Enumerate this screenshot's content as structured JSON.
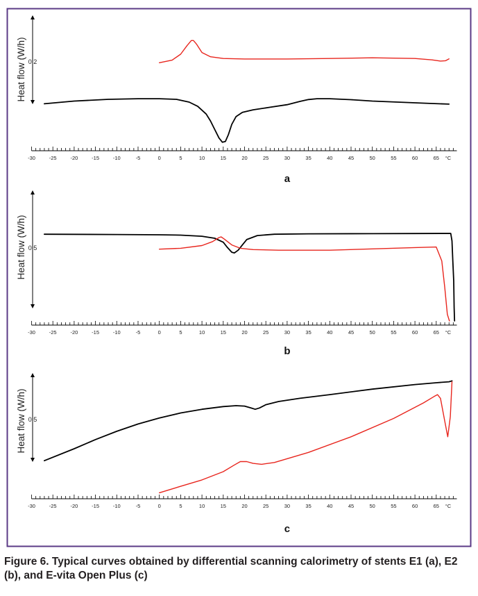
{
  "figure": {
    "border_color": "#5b3a86",
    "caption": "Figure 6. Typical curves obtained by differential scanning calorimetry of stents E1 (a), E2 (b), and E-vita Open Plus (c)"
  },
  "colors": {
    "black_curve": "#000000",
    "red_curve": "#e8251d"
  },
  "chart_data": [
    {
      "type": "line",
      "panel_label": "a",
      "ylabel": "Heat flow (W/h)",
      "scale_bar_value": "0.2",
      "x_unit": "°C",
      "xlim": [
        -30,
        70
      ],
      "x_tick_labels": [
        "-30",
        "-25",
        "-20",
        "-15",
        "-10",
        "-5",
        "0",
        "5",
        "10",
        "15",
        "20",
        "25",
        "30",
        "35",
        "40",
        "45",
        "50",
        "55",
        "60",
        "65"
      ],
      "grid": false,
      "y_offset_range": [
        -0.25,
        0.55
      ],
      "series": [
        {
          "color": "black",
          "points": [
            [
              -27,
              0.0
            ],
            [
              -20,
              0.016
            ],
            [
              -12,
              0.026
            ],
            [
              -5,
              0.03
            ],
            [
              0,
              0.03
            ],
            [
              4,
              0.026
            ],
            [
              7,
              0.01
            ],
            [
              9,
              -0.015
            ],
            [
              11,
              -0.06
            ],
            [
              12,
              -0.1
            ],
            [
              13,
              -0.15
            ],
            [
              14,
              -0.2
            ],
            [
              14.8,
              -0.225
            ],
            [
              15.5,
              -0.22
            ],
            [
              16.2,
              -0.18
            ],
            [
              17,
              -0.12
            ],
            [
              18,
              -0.075
            ],
            [
              19.5,
              -0.05
            ],
            [
              22,
              -0.035
            ],
            [
              26,
              -0.02
            ],
            [
              30,
              -0.005
            ],
            [
              33,
              0.014
            ],
            [
              35,
              0.025
            ],
            [
              37,
              0.03
            ],
            [
              40,
              0.03
            ],
            [
              45,
              0.024
            ],
            [
              50,
              0.016
            ],
            [
              56,
              0.01
            ],
            [
              62,
              0.004
            ],
            [
              68,
              -0.002
            ]
          ]
        },
        {
          "color": "red",
          "points": [
            [
              0,
              0.24
            ],
            [
              3,
              0.255
            ],
            [
              5,
              0.29
            ],
            [
              6.5,
              0.34
            ],
            [
              7.5,
              0.37
            ],
            [
              8,
              0.37
            ],
            [
              8.7,
              0.35
            ],
            [
              10,
              0.3
            ],
            [
              12,
              0.275
            ],
            [
              15,
              0.265
            ],
            [
              20,
              0.262
            ],
            [
              30,
              0.262
            ],
            [
              40,
              0.265
            ],
            [
              50,
              0.269
            ],
            [
              60,
              0.265
            ],
            [
              64,
              0.257
            ],
            [
              66,
              0.25
            ],
            [
              67.2,
              0.252
            ],
            [
              68,
              0.263
            ]
          ]
        }
      ]
    },
    {
      "type": "line",
      "panel_label": "b",
      "ylabel": "Heat flow (W/h)",
      "scale_bar_value": "0.5",
      "x_unit": "°C",
      "xlim": [
        -30,
        70
      ],
      "x_tick_labels": [
        "-30",
        "-25",
        "-20",
        "-15",
        "-10",
        "-5",
        "0",
        "5",
        "10",
        "15",
        "20",
        "25",
        "30",
        "35",
        "40",
        "45",
        "50",
        "55",
        "60",
        "65"
      ],
      "grid": false,
      "y_offset_range": [
        -0.55,
        0.45
      ],
      "series": [
        {
          "color": "black",
          "points": [
            [
              -27,
              0.1
            ],
            [
              -10,
              0.098
            ],
            [
              0,
              0.096
            ],
            [
              5,
              0.093
            ],
            [
              10,
              0.085
            ],
            [
              13,
              0.07
            ],
            [
              15,
              0.04
            ],
            [
              16,
              0.0
            ],
            [
              17,
              -0.035
            ],
            [
              17.6,
              -0.04
            ],
            [
              18.5,
              -0.02
            ],
            [
              19.5,
              0.02
            ],
            [
              20.5,
              0.06
            ],
            [
              23,
              0.09
            ],
            [
              27,
              0.1
            ],
            [
              35,
              0.103
            ],
            [
              50,
              0.104
            ],
            [
              60,
              0.105
            ],
            [
              68.4,
              0.106
            ],
            [
              68.7,
              0.05
            ],
            [
              68.9,
              -0.1
            ],
            [
              69.1,
              -0.25
            ],
            [
              69.2,
              -0.45
            ],
            [
              69.3,
              -0.55
            ]
          ]
        },
        {
          "color": "red",
          "points": [
            [
              0,
              -0.012
            ],
            [
              5,
              -0.005
            ],
            [
              10,
              0.015
            ],
            [
              12.5,
              0.045
            ],
            [
              14,
              0.075
            ],
            [
              14.5,
              0.08
            ],
            [
              15.2,
              0.065
            ],
            [
              17,
              0.02
            ],
            [
              19,
              -0.005
            ],
            [
              22,
              -0.015
            ],
            [
              28,
              -0.02
            ],
            [
              40,
              -0.02
            ],
            [
              50,
              -0.01
            ],
            [
              60,
              0.0
            ],
            [
              65,
              0.004
            ],
            [
              66.3,
              -0.1
            ],
            [
              67,
              -0.3
            ],
            [
              67.6,
              -0.5
            ],
            [
              68.1,
              -0.55
            ]
          ]
        }
      ]
    },
    {
      "type": "line",
      "panel_label": "c",
      "ylabel": "Heat flow (W/h)",
      "scale_bar_value": "0.5",
      "x_unit": "°C",
      "xlim": [
        -30,
        70
      ],
      "x_tick_labels": [
        "-30",
        "-25",
        "-20",
        "-15",
        "-10",
        "-5",
        "0",
        "5",
        "10",
        "15",
        "20",
        "25",
        "30",
        "35",
        "40",
        "45",
        "50",
        "55",
        "60",
        "65"
      ],
      "grid": false,
      "y_offset_range": [
        -0.9,
        0.6
      ],
      "series": [
        {
          "color": "black",
          "points": [
            [
              -27,
              -0.53
            ],
            [
              -20,
              -0.4
            ],
            [
              -15,
              -0.3
            ],
            [
              -10,
              -0.21
            ],
            [
              -5,
              -0.13
            ],
            [
              0,
              -0.065
            ],
            [
              5,
              -0.01
            ],
            [
              10,
              0.03
            ],
            [
              15,
              0.06
            ],
            [
              18,
              0.07
            ],
            [
              20,
              0.065
            ],
            [
              21.5,
              0.045
            ],
            [
              22.5,
              0.03
            ],
            [
              23.5,
              0.045
            ],
            [
              25,
              0.08
            ],
            [
              28,
              0.115
            ],
            [
              33,
              0.15
            ],
            [
              40,
              0.19
            ],
            [
              50,
              0.25
            ],
            [
              60,
              0.3
            ],
            [
              65,
              0.32
            ],
            [
              68,
              0.33
            ],
            [
              68.7,
              0.34
            ]
          ]
        },
        {
          "color": "red",
          "points": [
            [
              0,
              -0.88
            ],
            [
              5,
              -0.81
            ],
            [
              10,
              -0.74
            ],
            [
              15,
              -0.65
            ],
            [
              17.5,
              -0.58
            ],
            [
              19,
              -0.54
            ],
            [
              20.5,
              -0.54
            ],
            [
              22,
              -0.56
            ],
            [
              24,
              -0.57
            ],
            [
              27,
              -0.55
            ],
            [
              35,
              -0.44
            ],
            [
              45,
              -0.27
            ],
            [
              55,
              -0.07
            ],
            [
              62,
              0.1
            ],
            [
              64.5,
              0.17
            ],
            [
              65.3,
              0.19
            ],
            [
              66,
              0.15
            ],
            [
              67,
              -0.1
            ],
            [
              67.7,
              -0.27
            ],
            [
              68.3,
              -0.05
            ],
            [
              68.7,
              0.33
            ]
          ]
        }
      ]
    }
  ]
}
